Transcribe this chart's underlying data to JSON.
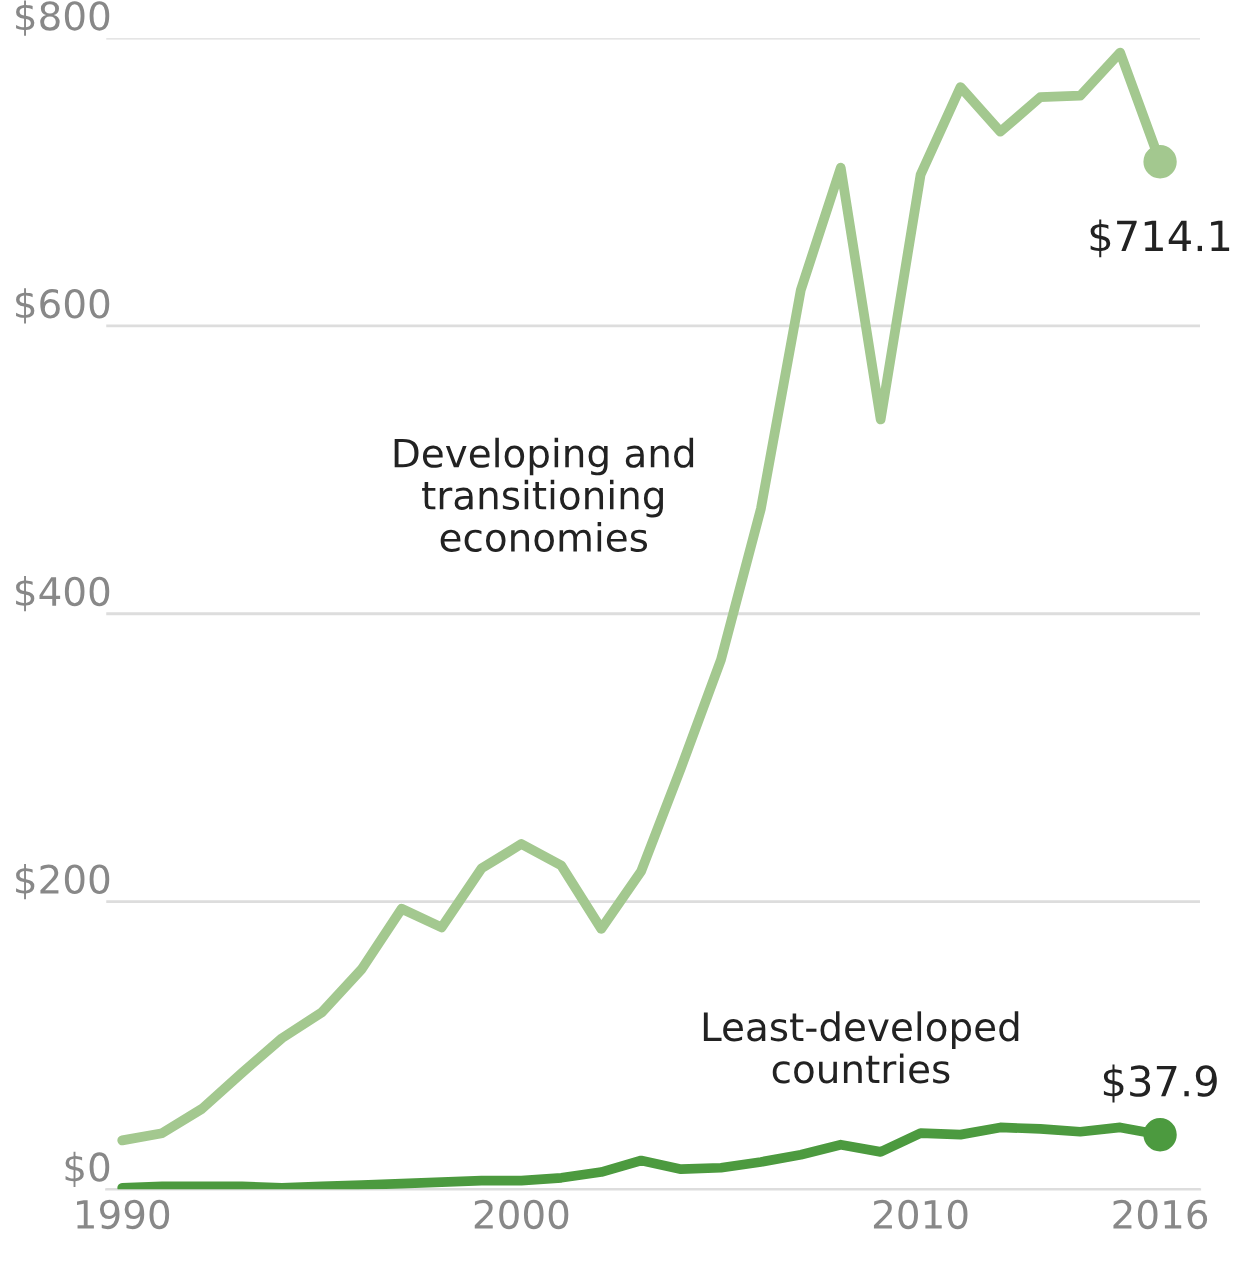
{
  "chart_data": {
    "type": "line",
    "x": [
      1990,
      1991,
      1992,
      1993,
      1994,
      1995,
      1996,
      1997,
      1998,
      1999,
      2000,
      2001,
      2002,
      2003,
      2004,
      2005,
      2006,
      2007,
      2008,
      2009,
      2010,
      2011,
      2012,
      2013,
      2014,
      2015,
      2016
    ],
    "series": [
      {
        "name": "Developing and transitioning economies",
        "color": "#a3c88f",
        "values": [
          34,
          39,
          56,
          81,
          105,
          123,
          153,
          195,
          182,
          223,
          240,
          225,
          181,
          221,
          293,
          368,
          473,
          625,
          710,
          535,
          705,
          766,
          735,
          759,
          760,
          790,
          714.1
        ]
      },
      {
        "name": "Least-developed countries",
        "color": "#4c9a3f",
        "values": [
          1,
          2,
          2,
          2,
          1,
          2,
          3,
          4,
          5,
          6,
          6,
          8,
          12,
          20,
          14,
          15,
          19,
          24,
          31,
          26,
          39,
          38,
          43,
          42,
          40,
          43,
          37.9
        ]
      }
    ],
    "annotations": [
      {
        "text": "$714.1",
        "x": 2016,
        "y": 714.1
      },
      {
        "text": "$37.9",
        "x": 2016,
        "y": 37.9
      }
    ],
    "xlim": [
      1989.6,
      2017
    ],
    "xticks": [
      1990,
      2000,
      2010,
      2016
    ],
    "ylim": [
      0,
      800
    ],
    "yticks": [
      {
        "value": 0,
        "label": "$0"
      },
      {
        "value": 200,
        "label": "$200"
      },
      {
        "value": 400,
        "label": "$400"
      },
      {
        "value": 600,
        "label": "$600"
      },
      {
        "value": 800,
        "label": "$800"
      }
    ],
    "grid": "y",
    "legend": false,
    "line_style": "solid"
  }
}
